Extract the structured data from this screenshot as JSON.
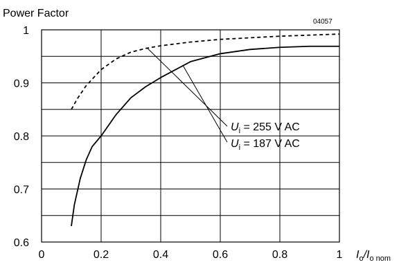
{
  "chart_data": {
    "type": "line",
    "title": "",
    "ylabel": "Power Factor",
    "xlabel_main": "I",
    "xlabel_sub1": "o",
    "xlabel_slash": "/I",
    "xlabel_sub2": "o nom",
    "figure_code": "04057",
    "xlim": [
      0,
      1
    ],
    "ylim": [
      0.6,
      1
    ],
    "x_ticks": [
      "0",
      "0.2",
      "0.4",
      "0.6",
      "0.8",
      "1"
    ],
    "y_ticks": [
      "0.6",
      "0.7",
      "0.8",
      "0.9",
      "1"
    ],
    "grid": true,
    "series": [
      {
        "name_var": "U",
        "name_sub": "i",
        "name_rest": " = 255 V AC",
        "style": "dashed",
        "x": [
          0.1,
          0.12,
          0.15,
          0.2,
          0.25,
          0.3,
          0.35,
          0.4,
          0.5,
          0.6,
          0.7,
          0.8,
          0.9,
          1.0
        ],
        "y": [
          0.85,
          0.87,
          0.895,
          0.925,
          0.945,
          0.958,
          0.965,
          0.97,
          0.977,
          0.982,
          0.985,
          0.988,
          0.99,
          0.992
        ]
      },
      {
        "name_var": "U",
        "name_sub": "i",
        "name_rest": " = 187 V AC",
        "style": "solid",
        "x": [
          0.1,
          0.11,
          0.13,
          0.15,
          0.17,
          0.2,
          0.25,
          0.3,
          0.35,
          0.4,
          0.5,
          0.6,
          0.7,
          0.8,
          0.9,
          1.0
        ],
        "y": [
          0.63,
          0.67,
          0.72,
          0.755,
          0.78,
          0.8,
          0.84,
          0.872,
          0.893,
          0.91,
          0.94,
          0.955,
          0.963,
          0.967,
          0.969,
          0.969
        ]
      }
    ]
  }
}
